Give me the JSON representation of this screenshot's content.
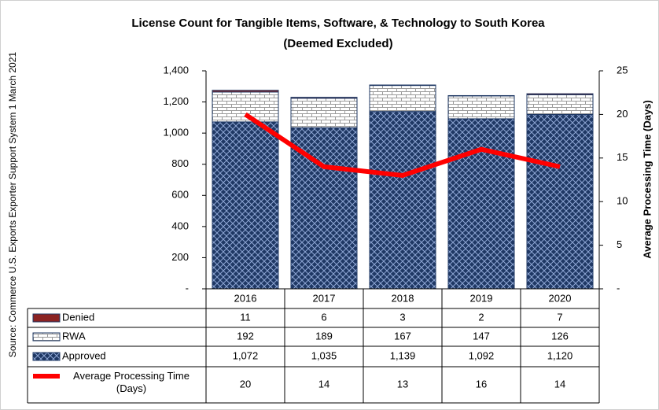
{
  "chart_data": {
    "type": "bar",
    "title": "License Count for Tangible Items, Software, & Technology to South Korea",
    "subtitle": "(Deemed Excluded)",
    "source": "Source: Commerce U.S. Exports Exporter Support System 1 March 2021",
    "y2_label": "Average Processing Time (Days)",
    "categories": [
      "2016",
      "2017",
      "2018",
      "2019",
      "2020"
    ],
    "stacked": true,
    "series": [
      {
        "name": "Denied",
        "color": "#8b2323",
        "pattern": "solid",
        "values": [
          11,
          6,
          3,
          2,
          7
        ]
      },
      {
        "name": "RWA",
        "color": "#ffffff",
        "pattern": "brick",
        "values": [
          192,
          189,
          167,
          147,
          126
        ]
      },
      {
        "name": "Approved",
        "color": "#1f3864",
        "pattern": "diamond",
        "values": [
          1072,
          1035,
          1139,
          1092,
          1120
        ],
        "value_labels": [
          "1,072",
          "1,035",
          "1,139",
          "1,092",
          "1,120"
        ]
      },
      {
        "name": "Average Processing Time (Days)",
        "color": "#ff0000",
        "type": "line",
        "axis": "y2",
        "values": [
          20,
          14,
          13,
          16,
          14
        ]
      }
    ],
    "ylim": [
      0,
      1400
    ],
    "yticks": [
      {
        "value": 0,
        "label": "-"
      },
      200,
      400,
      600,
      800,
      {
        "value": 1000,
        "label": "1,000"
      },
      {
        "value": 1200,
        "label": "1,200"
      },
      {
        "value": 1400,
        "label": "1,400"
      }
    ],
    "y2lim": [
      0,
      25
    ],
    "y2ticks": [
      {
        "value": 0,
        "label": "-"
      },
      5,
      10,
      15,
      20,
      25
    ],
    "grid": false,
    "legend": "table"
  }
}
